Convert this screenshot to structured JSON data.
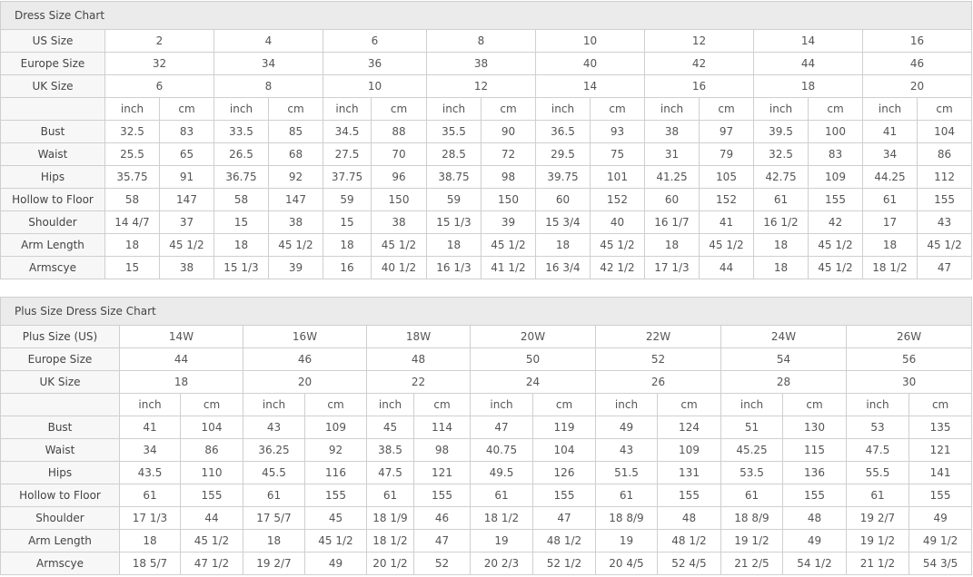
{
  "tables": [
    {
      "title": "Dress Size Chart",
      "size_rows": [
        {
          "label": "US Size",
          "values": [
            "2",
            "4",
            "6",
            "8",
            "10",
            "12",
            "14",
            "16"
          ]
        },
        {
          "label": "Europe Size",
          "values": [
            "32",
            "34",
            "36",
            "38",
            "40",
            "42",
            "44",
            "46"
          ]
        },
        {
          "label": "UK Size",
          "values": [
            "6",
            "8",
            "10",
            "12",
            "14",
            "16",
            "18",
            "20"
          ]
        }
      ],
      "unit_labels": [
        "inch",
        "cm"
      ],
      "measure_rows": [
        {
          "label": "Bust",
          "values": [
            "32.5",
            "83",
            "33.5",
            "85",
            "34.5",
            "88",
            "35.5",
            "90",
            "36.5",
            "93",
            "38",
            "97",
            "39.5",
            "100",
            "41",
            "104"
          ]
        },
        {
          "label": "Waist",
          "values": [
            "25.5",
            "65",
            "26.5",
            "68",
            "27.5",
            "70",
            "28.5",
            "72",
            "29.5",
            "75",
            "31",
            "79",
            "32.5",
            "83",
            "34",
            "86"
          ]
        },
        {
          "label": "Hips",
          "values": [
            "35.75",
            "91",
            "36.75",
            "92",
            "37.75",
            "96",
            "38.75",
            "98",
            "39.75",
            "101",
            "41.25",
            "105",
            "42.75",
            "109",
            "44.25",
            "112"
          ]
        },
        {
          "label": "Hollow to Floor",
          "values": [
            "58",
            "147",
            "58",
            "147",
            "59",
            "150",
            "59",
            "150",
            "60",
            "152",
            "60",
            "152",
            "61",
            "155",
            "61",
            "155"
          ]
        },
        {
          "label": "Shoulder",
          "values": [
            "14 4/7",
            "37",
            "15",
            "38",
            "15",
            "38",
            "15 1/3",
            "39",
            "15 3/4",
            "40",
            "16 1/7",
            "41",
            "16 1/2",
            "42",
            "17",
            "43"
          ]
        },
        {
          "label": "Arm Length",
          "values": [
            "18",
            "45 1/2",
            "18",
            "45 1/2",
            "18",
            "45 1/2",
            "18",
            "45 1/2",
            "18",
            "45 1/2",
            "18",
            "45 1/2",
            "18",
            "45 1/2",
            "18",
            "45 1/2"
          ]
        },
        {
          "label": "Armscye",
          "values": [
            "15",
            "38",
            "15 1/3",
            "39",
            "16",
            "40 1/2",
            "16 1/3",
            "41 1/2",
            "16 3/4",
            "42 1/2",
            "17 1/3",
            "44",
            "18",
            "45 1/2",
            "18 1/2",
            "47"
          ]
        }
      ]
    },
    {
      "title": "Plus Size Dress Size Chart",
      "size_rows": [
        {
          "label": "Plus Size (US)",
          "values": [
            "14W",
            "16W",
            "18W",
            "20W",
            "22W",
            "24W",
            "26W"
          ]
        },
        {
          "label": "Europe Size",
          "values": [
            "44",
            "46",
            "48",
            "50",
            "52",
            "54",
            "56"
          ]
        },
        {
          "label": "UK Size",
          "values": [
            "18",
            "20",
            "22",
            "24",
            "26",
            "28",
            "30"
          ]
        }
      ],
      "unit_labels": [
        "inch",
        "cm"
      ],
      "measure_rows": [
        {
          "label": "Bust",
          "values": [
            "41",
            "104",
            "43",
            "109",
            "45",
            "114",
            "47",
            "119",
            "49",
            "124",
            "51",
            "130",
            "53",
            "135"
          ]
        },
        {
          "label": "Waist",
          "values": [
            "34",
            "86",
            "36.25",
            "92",
            "38.5",
            "98",
            "40.75",
            "104",
            "43",
            "109",
            "45.25",
            "115",
            "47.5",
            "121"
          ]
        },
        {
          "label": "Hips",
          "values": [
            "43.5",
            "110",
            "45.5",
            "116",
            "47.5",
            "121",
            "49.5",
            "126",
            "51.5",
            "131",
            "53.5",
            "136",
            "55.5",
            "141"
          ]
        },
        {
          "label": "Hollow to Floor",
          "values": [
            "61",
            "155",
            "61",
            "155",
            "61",
            "155",
            "61",
            "155",
            "61",
            "155",
            "61",
            "155",
            "61",
            "155"
          ]
        },
        {
          "label": "Shoulder",
          "values": [
            "17 1/3",
            "44",
            "17 5/7",
            "45",
            "18 1/9",
            "46",
            "18 1/2",
            "47",
            "18 8/9",
            "48",
            "18 8/9",
            "48",
            "19 2/7",
            "49"
          ]
        },
        {
          "label": "Arm Length",
          "values": [
            "18",
            "45 1/2",
            "18",
            "45 1/2",
            "18 1/2",
            "47",
            "19",
            "48 1/2",
            "19",
            "48 1/2",
            "19 1/2",
            "49",
            "19 1/2",
            "49 1/2"
          ]
        },
        {
          "label": "Armscye",
          "values": [
            "18 5/7",
            "47 1/2",
            "19 2/7",
            "49",
            "20 1/2",
            "52",
            "20 2/3",
            "52 1/2",
            "20 4/5",
            "52 4/5",
            "21 2/5",
            "54 1/2",
            "21 1/2",
            "54 3/5"
          ]
        }
      ]
    }
  ]
}
